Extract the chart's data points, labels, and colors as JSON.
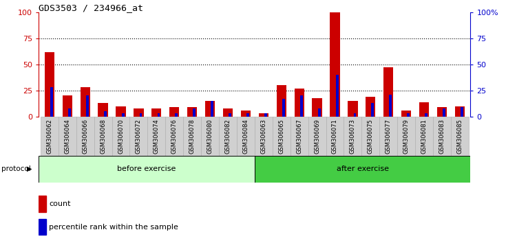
{
  "title": "GDS3503 / 234966_at",
  "samples": [
    "GSM306062",
    "GSM306064",
    "GSM306066",
    "GSM306068",
    "GSM306070",
    "GSM306072",
    "GSM306074",
    "GSM306076",
    "GSM306078",
    "GSM306080",
    "GSM306082",
    "GSM306084",
    "GSM306063",
    "GSM306065",
    "GSM306067",
    "GSM306069",
    "GSM306071",
    "GSM306073",
    "GSM306075",
    "GSM306077",
    "GSM306079",
    "GSM306081",
    "GSM306083",
    "GSM306085"
  ],
  "count_values": [
    62,
    20,
    28,
    13,
    10,
    8,
    8,
    9,
    9,
    15,
    8,
    6,
    3,
    30,
    27,
    18,
    100,
    15,
    19,
    47,
    6,
    14,
    9,
    10
  ],
  "percentile_values": [
    28,
    8,
    20,
    5,
    3,
    3,
    3,
    3,
    8,
    15,
    3,
    3,
    3,
    17,
    20,
    8,
    40,
    3,
    13,
    21,
    3,
    3,
    8,
    9
  ],
  "before_count": 12,
  "after_count": 12,
  "before_label": "before exercise",
  "after_label": "after exercise",
  "protocol_label": "protocol",
  "legend_count": "count",
  "legend_percentile": "percentile rank within the sample",
  "ylim": [
    0,
    100
  ],
  "yticks": [
    0,
    25,
    50,
    75,
    100
  ],
  "bar_color_count": "#cc0000",
  "bar_color_percentile": "#0000cc",
  "before_bg": "#ccffcc",
  "after_bg": "#44cc44",
  "grid_color": "#000000",
  "title_color": "#000000",
  "left_axis_color": "#cc0000",
  "right_axis_color": "#0000cc",
  "tick_bg": "#d0d0d0",
  "plot_bg": "#ffffff"
}
